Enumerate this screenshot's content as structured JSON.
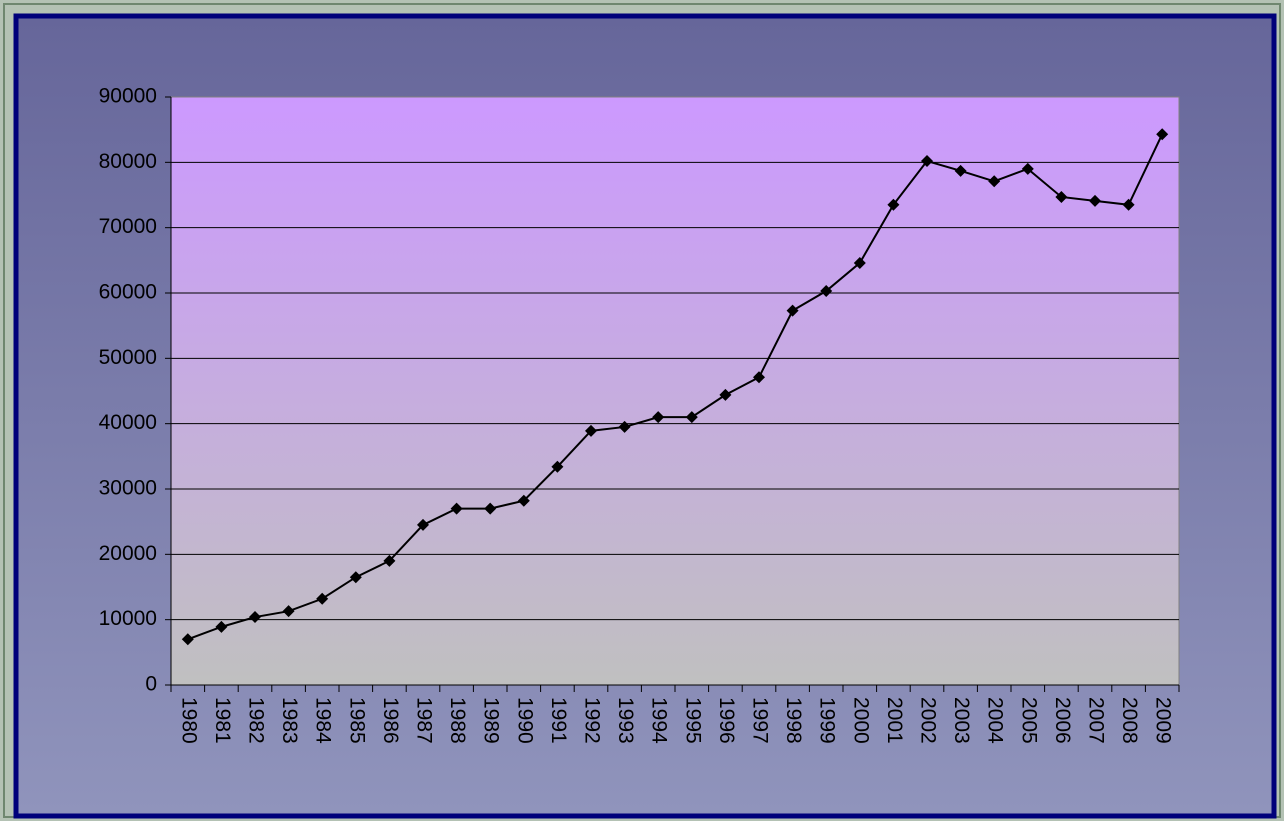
{
  "chart_data": {
    "type": "line",
    "categories": [
      "1980",
      "1981",
      "1982",
      "1983",
      "1984",
      "1985",
      "1986",
      "1987",
      "1988",
      "1989",
      "1990",
      "1991",
      "1992",
      "1993",
      "1994",
      "1995",
      "1996",
      "1997",
      "1998",
      "1999",
      "2000",
      "2001",
      "2002",
      "2003",
      "2004",
      "2005",
      "2006",
      "2007",
      "2008",
      "2009"
    ],
    "series": [
      {
        "color": "#000000",
        "values": [
          7000,
          8900,
          10400,
          11300,
          13200,
          16500,
          19000,
          24500,
          27000,
          27000,
          28200,
          33400,
          38900,
          39500,
          41000,
          41000,
          44400,
          47100,
          57300,
          60300,
          64600,
          73500,
          80200,
          78700,
          77100,
          79000,
          74700,
          74100,
          73500,
          84300
        ]
      }
    ],
    "ylim": [
      0,
      90000
    ],
    "yticks": [
      0,
      10000,
      20000,
      30000,
      40000,
      50000,
      60000,
      70000,
      80000,
      90000
    ],
    "grid": true
  }
}
